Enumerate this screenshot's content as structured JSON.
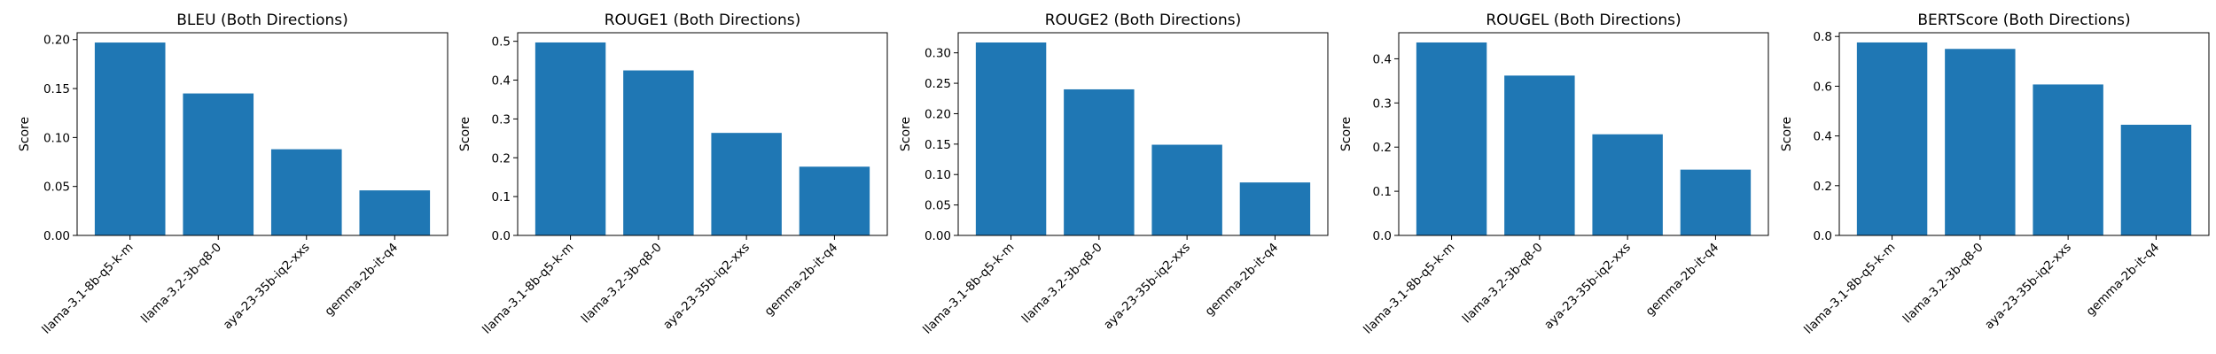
{
  "chart_data": [
    {
      "type": "bar",
      "title": "BLEU (Both Directions)",
      "ylabel": "Score",
      "xlabel": "",
      "categories": [
        "llama-3.1-8b-q5-k-m",
        "llama-3.2-3b-q8-0",
        "aya-23-35b-iq2-xxs",
        "gemma-2b-it-q4"
      ],
      "values": [
        0.197,
        0.145,
        0.088,
        0.046
      ],
      "ylim": [
        0,
        0.207
      ],
      "yticks": [
        0.0,
        0.05,
        0.1,
        0.15,
        0.2
      ],
      "ytick_labels": [
        "0.00",
        "0.05",
        "0.10",
        "0.15",
        "0.20"
      ],
      "color": "#1f77b4"
    },
    {
      "type": "bar",
      "title": "ROUGE1 (Both Directions)",
      "ylabel": "Score",
      "xlabel": "",
      "categories": [
        "llama-3.1-8b-q5-k-m",
        "llama-3.2-3b-q8-0",
        "aya-23-35b-iq2-xxs",
        "gemma-2b-it-q4"
      ],
      "values": [
        0.497,
        0.425,
        0.264,
        0.177
      ],
      "ylim": [
        0,
        0.522
      ],
      "yticks": [
        0.0,
        0.1,
        0.2,
        0.3,
        0.4,
        0.5
      ],
      "ytick_labels": [
        "0.0",
        "0.1",
        "0.2",
        "0.3",
        "0.4",
        "0.5"
      ],
      "color": "#1f77b4"
    },
    {
      "type": "bar",
      "title": "ROUGE2 (Both Directions)",
      "ylabel": "Score",
      "xlabel": "",
      "categories": [
        "llama-3.1-8b-q5-k-m",
        "llama-3.2-3b-q8-0",
        "aya-23-35b-iq2-xxs",
        "gemma-2b-it-q4"
      ],
      "values": [
        0.317,
        0.24,
        0.149,
        0.087
      ],
      "ylim": [
        0,
        0.333
      ],
      "yticks": [
        0.0,
        0.05,
        0.1,
        0.15,
        0.2,
        0.25,
        0.3
      ],
      "ytick_labels": [
        "0.00",
        "0.05",
        "0.10",
        "0.15",
        "0.20",
        "0.25",
        "0.30"
      ],
      "color": "#1f77b4"
    },
    {
      "type": "bar",
      "title": "ROUGEL (Both Directions)",
      "ylabel": "Score",
      "xlabel": "",
      "categories": [
        "llama-3.1-8b-q5-k-m",
        "llama-3.2-3b-q8-0",
        "aya-23-35b-iq2-xxs",
        "gemma-2b-it-q4"
      ],
      "values": [
        0.437,
        0.362,
        0.229,
        0.149
      ],
      "ylim": [
        0,
        0.459
      ],
      "yticks": [
        0.0,
        0.1,
        0.2,
        0.3,
        0.4
      ],
      "ytick_labels": [
        "0.0",
        "0.1",
        "0.2",
        "0.3",
        "0.4"
      ],
      "color": "#1f77b4"
    },
    {
      "type": "bar",
      "title": "BERTScore (Both Directions)",
      "ylabel": "Score",
      "xlabel": "",
      "categories": [
        "llama-3.1-8b-q5-k-m",
        "llama-3.2-3b-q8-0",
        "aya-23-35b-iq2-xxs",
        "gemma-2b-it-q4"
      ],
      "values": [
        0.776,
        0.75,
        0.607,
        0.445
      ],
      "ylim": [
        0,
        0.815
      ],
      "yticks": [
        0.0,
        0.2,
        0.4,
        0.6,
        0.8
      ],
      "ytick_labels": [
        "0.0",
        "0.2",
        "0.4",
        "0.6",
        "0.8"
      ],
      "color": "#1f77b4"
    }
  ]
}
